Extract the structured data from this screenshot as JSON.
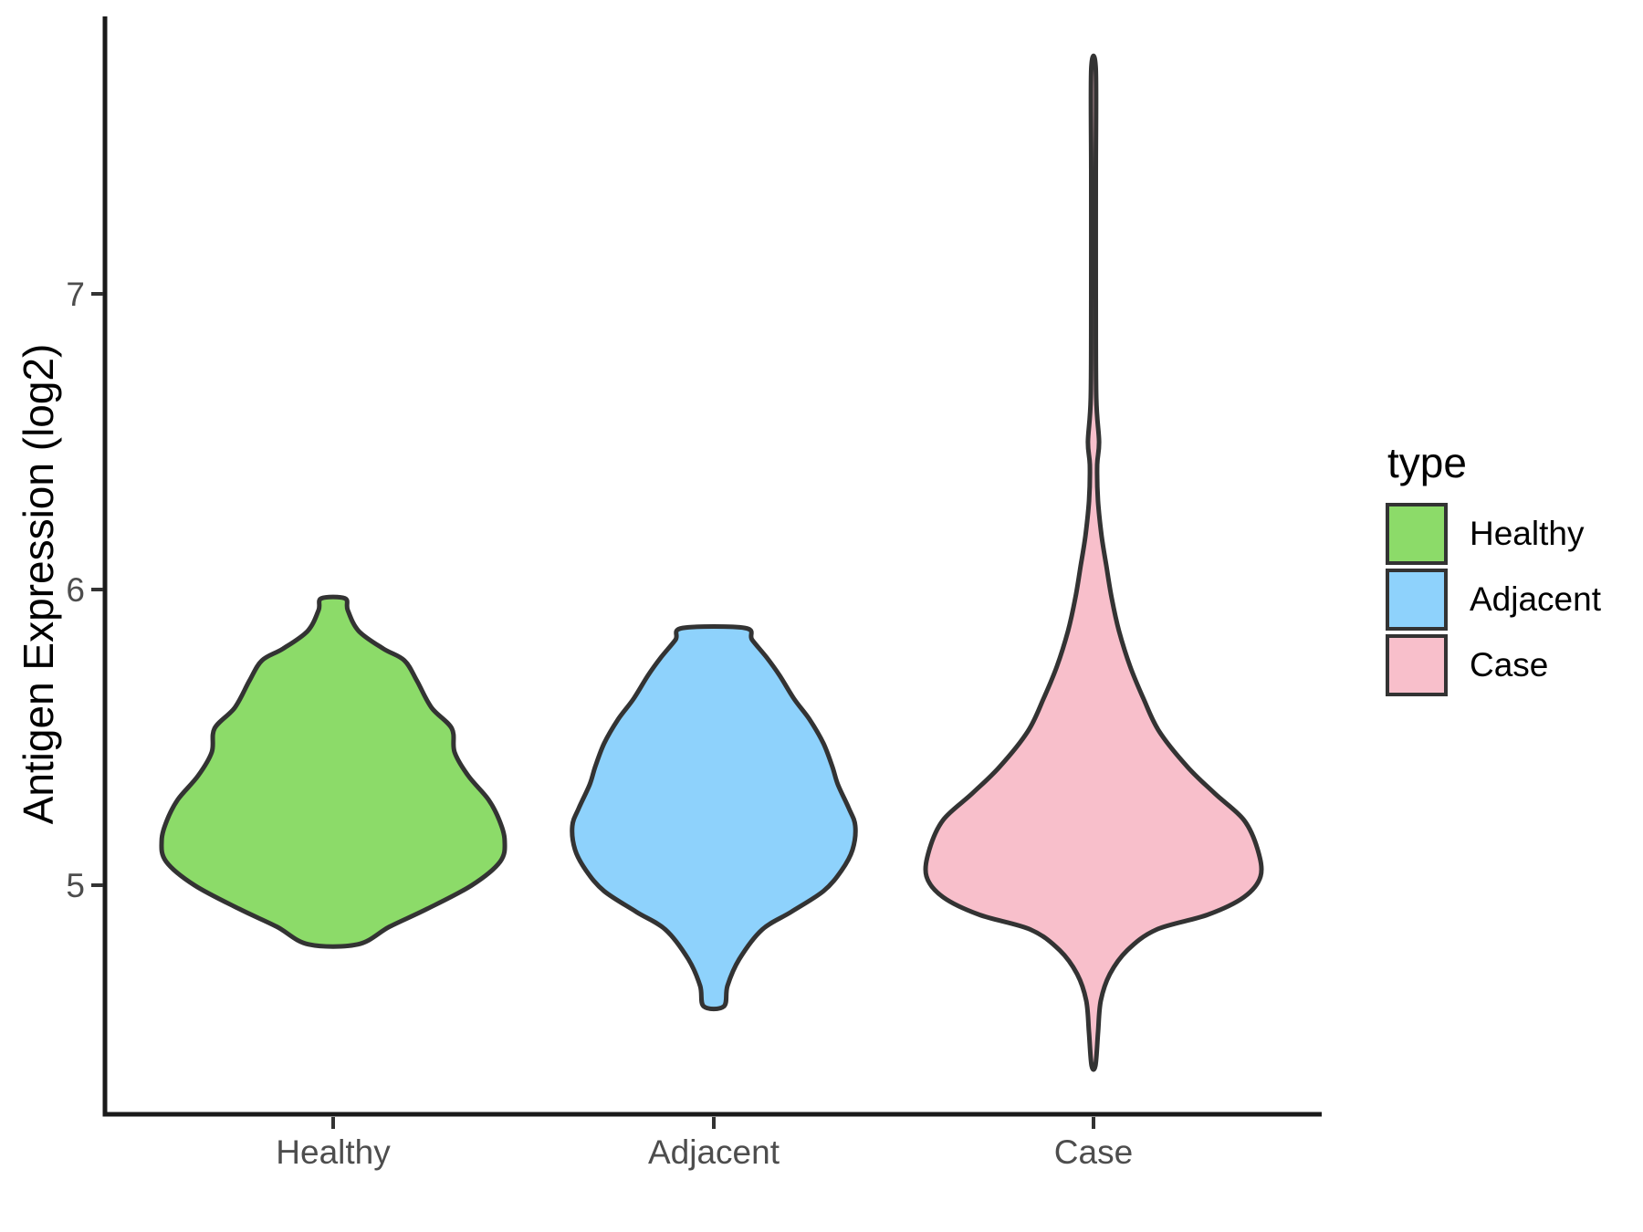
{
  "figure": {
    "background": "#FFFFFF",
    "y_axis_title": "Antigen Expression (log2)",
    "legend": {
      "title": "type",
      "entries": [
        {
          "label": "Healthy",
          "color": "#8CDB69"
        },
        {
          "label": "Adjacent",
          "color": "#8ED2FC"
        },
        {
          "label": "Case",
          "color": "#F8BFCB"
        }
      ]
    },
    "colors": {
      "outline": "#333333",
      "axis_line": "#1A1A1A",
      "tick_mark": "#333333",
      "tick_text": "#4D4D4D",
      "title_text": "#000000"
    }
  },
  "chart_data": {
    "type": "violin",
    "title": "",
    "xlabel": "",
    "ylabel": "Antigen Expression (log2)",
    "categories": [
      "Healthy",
      "Adjacent",
      "Case"
    ],
    "yticks": [
      5,
      6,
      7
    ],
    "ylim": [
      4.23,
      7.94
    ],
    "grid": false,
    "legend_title": "type",
    "legend_position": "right",
    "series": [
      {
        "name": "Healthy",
        "fill": "#8CDB69",
        "value_range": [
          4.8,
          5.97
        ],
        "profile": [
          [
            5.97,
            0.068
          ],
          [
            5.93,
            0.084
          ],
          [
            5.86,
            0.147
          ],
          [
            5.8,
            0.289
          ],
          [
            5.76,
            0.411
          ],
          [
            5.69,
            0.484
          ],
          [
            5.6,
            0.568
          ],
          [
            5.53,
            0.684
          ],
          [
            5.45,
            0.7
          ],
          [
            5.37,
            0.779
          ],
          [
            5.29,
            0.895
          ],
          [
            5.22,
            0.958
          ],
          [
            5.15,
            0.989
          ],
          [
            5.08,
            0.963
          ],
          [
            5.0,
            0.8
          ],
          [
            4.92,
            0.542
          ],
          [
            4.86,
            0.326
          ],
          [
            4.8,
            0.142
          ]
        ]
      },
      {
        "name": "Adjacent",
        "fill": "#8ED2FC",
        "value_range": [
          4.59,
          5.87
        ],
        "profile": [
          [
            5.87,
            0.179
          ],
          [
            5.83,
            0.221
          ],
          [
            5.77,
            0.305
          ],
          [
            5.71,
            0.379
          ],
          [
            5.63,
            0.463
          ],
          [
            5.56,
            0.553
          ],
          [
            5.48,
            0.632
          ],
          [
            5.4,
            0.684
          ],
          [
            5.34,
            0.716
          ],
          [
            5.26,
            0.779
          ],
          [
            5.2,
            0.816
          ],
          [
            5.12,
            0.8
          ],
          [
            5.05,
            0.737
          ],
          [
            4.98,
            0.632
          ],
          [
            4.91,
            0.447
          ],
          [
            4.85,
            0.279
          ],
          [
            4.75,
            0.147
          ],
          [
            4.66,
            0.079
          ],
          [
            4.59,
            0.058
          ]
        ]
      },
      {
        "name": "Case",
        "fill": "#F8BFCB",
        "value_range": [
          4.39,
          7.76
        ],
        "profile": [
          [
            7.76,
            0.013
          ],
          [
            7.4,
            0.013
          ],
          [
            7.0,
            0.013
          ],
          [
            6.65,
            0.016
          ],
          [
            6.5,
            0.032
          ],
          [
            6.42,
            0.021
          ],
          [
            6.3,
            0.026
          ],
          [
            6.18,
            0.047
          ],
          [
            6.08,
            0.074
          ],
          [
            5.97,
            0.105
          ],
          [
            5.86,
            0.147
          ],
          [
            5.74,
            0.211
          ],
          [
            5.63,
            0.289
          ],
          [
            5.52,
            0.379
          ],
          [
            5.4,
            0.542
          ],
          [
            5.31,
            0.7
          ],
          [
            5.22,
            0.868
          ],
          [
            5.12,
            0.947
          ],
          [
            5.03,
            0.963
          ],
          [
            4.96,
            0.868
          ],
          [
            4.9,
            0.658
          ],
          [
            4.85,
            0.363
          ],
          [
            4.78,
            0.195
          ],
          [
            4.7,
            0.095
          ],
          [
            4.61,
            0.042
          ],
          [
            4.5,
            0.026
          ],
          [
            4.39,
            0.011
          ]
        ]
      }
    ]
  }
}
